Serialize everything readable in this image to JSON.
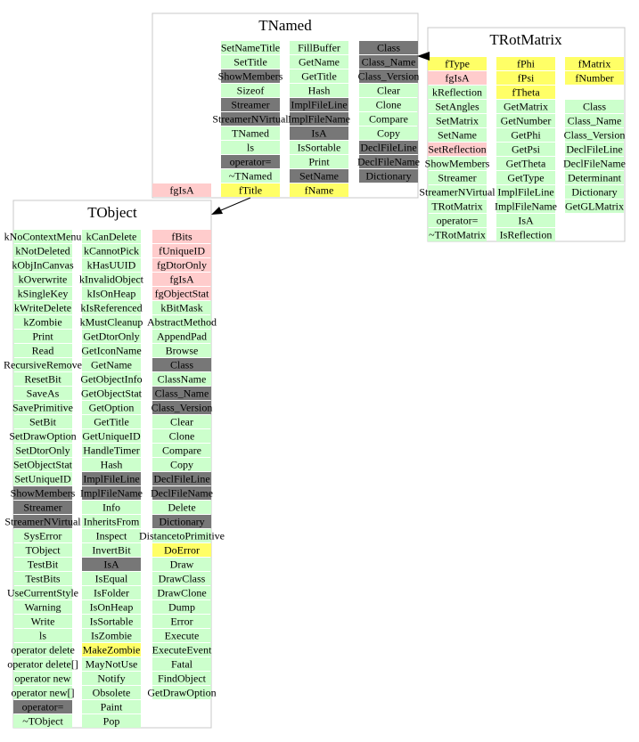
{
  "classes": [
    {
      "name": "TNamed",
      "columns": [
        [
          [
            "fgIsA",
            "#ffcccc"
          ]
        ],
        [
          [
            "SetNameTitle",
            "#ccffcc"
          ],
          [
            "SetTitle",
            "#ccffcc"
          ],
          [
            "ShowMembers",
            "#777777"
          ],
          [
            "Sizeof",
            "#ccffcc"
          ],
          [
            "Streamer",
            "#777777"
          ],
          [
            "StreamerNVirtual",
            "#777777"
          ],
          [
            "TNamed",
            "#ccffcc"
          ],
          [
            "ls",
            "#ccffcc"
          ],
          [
            "operator=",
            "#777777"
          ],
          [
            "~TNamed",
            "#ccffcc"
          ],
          [
            "fTitle",
            "#ffff66"
          ]
        ],
        [
          [
            "FillBuffer",
            "#ccffcc"
          ],
          [
            "GetName",
            "#ccffcc"
          ],
          [
            "GetTitle",
            "#ccffcc"
          ],
          [
            "Hash",
            "#ccffcc"
          ],
          [
            "ImplFileLine",
            "#777777"
          ],
          [
            "ImplFileName",
            "#777777"
          ],
          [
            "IsA",
            "#777777"
          ],
          [
            "IsSortable",
            "#ccffcc"
          ],
          [
            "Print",
            "#ccffcc"
          ],
          [
            "SetName",
            "#777777"
          ],
          [
            "fName",
            "#ffff66"
          ]
        ],
        [
          [
            "Class",
            "#777777"
          ],
          [
            "Class_Name",
            "#777777"
          ],
          [
            "Class_Version",
            "#777777"
          ],
          [
            "Clear",
            "#ccffcc"
          ],
          [
            "Clone",
            "#ccffcc"
          ],
          [
            "Compare",
            "#ccffcc"
          ],
          [
            "Copy",
            "#ccffcc"
          ],
          [
            "DeclFileLine",
            "#777777"
          ],
          [
            "DeclFileName",
            "#777777"
          ],
          [
            "Dictionary",
            "#777777"
          ]
        ]
      ]
    },
    {
      "name": "TRotMatrix",
      "columns": [
        [
          [
            "fType",
            "#ffff66"
          ],
          [
            "fgIsA",
            "#ffcccc"
          ],
          [
            "kReflection",
            "#ccffcc"
          ],
          [
            "SetAngles",
            "#ccffcc"
          ],
          [
            "SetMatrix",
            "#ccffcc"
          ],
          [
            "SetName",
            "#ccffcc"
          ],
          [
            "SetReflection",
            "#ffcccc"
          ],
          [
            "ShowMembers",
            "#ccffcc"
          ],
          [
            "Streamer",
            "#ccffcc"
          ],
          [
            "StreamerNVirtual",
            "#ccffcc"
          ],
          [
            "TRotMatrix",
            "#ccffcc"
          ],
          [
            "operator=",
            "#ccffcc"
          ],
          [
            "~TRotMatrix",
            "#ccffcc"
          ]
        ],
        [
          [
            "fPhi",
            "#ffff66"
          ],
          [
            "fPsi",
            "#ffff66"
          ],
          [
            "fTheta",
            "#ffff66"
          ],
          [
            "GetMatrix",
            "#ccffcc"
          ],
          [
            "GetNumber",
            "#ccffcc"
          ],
          [
            "GetPhi",
            "#ccffcc"
          ],
          [
            "GetPsi",
            "#ccffcc"
          ],
          [
            "GetTheta",
            "#ccffcc"
          ],
          [
            "GetType",
            "#ccffcc"
          ],
          [
            "ImplFileLine",
            "#ccffcc"
          ],
          [
            "ImplFileName",
            "#ccffcc"
          ],
          [
            "IsA",
            "#ccffcc"
          ],
          [
            "IsReflection",
            "#ccffcc"
          ]
        ],
        [
          [
            "fMatrix",
            "#ffff66"
          ],
          [
            "fNumber",
            "#ffff66"
          ]
        ],
        [
          [
            "Class",
            "#ccffcc"
          ],
          [
            "Class_Name",
            "#ccffcc"
          ],
          [
            "Class_Version",
            "#ccffcc"
          ],
          [
            "DeclFileLine",
            "#ccffcc"
          ],
          [
            "DeclFileName",
            "#ccffcc"
          ],
          [
            "Determinant",
            "#ccffcc"
          ],
          [
            "Dictionary",
            "#ccffcc"
          ],
          [
            "GetGLMatrix",
            "#ccffcc"
          ]
        ]
      ]
    },
    {
      "name": "TObject",
      "columns": [
        [
          [
            "kNoContextMenu",
            "#ccffcc"
          ],
          [
            "kNotDeleted",
            "#ccffcc"
          ],
          [
            "kObjInCanvas",
            "#ccffcc"
          ],
          [
            "kOverwrite",
            "#ccffcc"
          ],
          [
            "kSingleKey",
            "#ccffcc"
          ],
          [
            "kWriteDelete",
            "#ccffcc"
          ],
          [
            "kZombie",
            "#ccffcc"
          ],
          [
            "Print",
            "#ccffcc"
          ],
          [
            "Read",
            "#ccffcc"
          ],
          [
            "RecursiveRemove",
            "#ccffcc"
          ],
          [
            "ResetBit",
            "#ccffcc"
          ],
          [
            "SaveAs",
            "#ccffcc"
          ],
          [
            "SavePrimitive",
            "#ccffcc"
          ],
          [
            "SetBit",
            "#ccffcc"
          ],
          [
            "SetDrawOption",
            "#ccffcc"
          ],
          [
            "SetDtorOnly",
            "#ccffcc"
          ],
          [
            "SetObjectStat",
            "#ccffcc"
          ],
          [
            "SetUniqueID",
            "#ccffcc"
          ],
          [
            "ShowMembers",
            "#777777"
          ],
          [
            "Streamer",
            "#777777"
          ],
          [
            "StreamerNVirtual",
            "#777777"
          ],
          [
            "SysError",
            "#ccffcc"
          ],
          [
            "TObject",
            "#ccffcc"
          ],
          [
            "TestBit",
            "#ccffcc"
          ],
          [
            "TestBits",
            "#ccffcc"
          ],
          [
            "UseCurrentStyle",
            "#ccffcc"
          ],
          [
            "Warning",
            "#ccffcc"
          ],
          [
            "Write",
            "#ccffcc"
          ],
          [
            "ls",
            "#ccffcc"
          ],
          [
            "operator delete",
            "#ccffcc"
          ],
          [
            "operator delete[]",
            "#ccffcc"
          ],
          [
            "operator new",
            "#ccffcc"
          ],
          [
            "operator new[]",
            "#ccffcc"
          ],
          [
            "operator=",
            "#777777"
          ],
          [
            "~TObject",
            "#ccffcc"
          ]
        ],
        [
          [
            "kCanDelete",
            "#ccffcc"
          ],
          [
            "kCannotPick",
            "#ccffcc"
          ],
          [
            "kHasUUID",
            "#ccffcc"
          ],
          [
            "kInvalidObject",
            "#ccffcc"
          ],
          [
            "kIsOnHeap",
            "#ccffcc"
          ],
          [
            "kIsReferenced",
            "#ccffcc"
          ],
          [
            "kMustCleanup",
            "#ccffcc"
          ],
          [
            "GetDtorOnly",
            "#ccffcc"
          ],
          [
            "GetIconName",
            "#ccffcc"
          ],
          [
            "GetName",
            "#ccffcc"
          ],
          [
            "GetObjectInfo",
            "#ccffcc"
          ],
          [
            "GetObjectStat",
            "#ccffcc"
          ],
          [
            "GetOption",
            "#ccffcc"
          ],
          [
            "GetTitle",
            "#ccffcc"
          ],
          [
            "GetUniqueID",
            "#ccffcc"
          ],
          [
            "HandleTimer",
            "#ccffcc"
          ],
          [
            "Hash",
            "#ccffcc"
          ],
          [
            "ImplFileLine",
            "#777777"
          ],
          [
            "ImplFileName",
            "#777777"
          ],
          [
            "Info",
            "#ccffcc"
          ],
          [
            "InheritsFrom",
            "#ccffcc"
          ],
          [
            "Inspect",
            "#ccffcc"
          ],
          [
            "InvertBit",
            "#ccffcc"
          ],
          [
            "IsA",
            "#777777"
          ],
          [
            "IsEqual",
            "#ccffcc"
          ],
          [
            "IsFolder",
            "#ccffcc"
          ],
          [
            "IsOnHeap",
            "#ccffcc"
          ],
          [
            "IsSortable",
            "#ccffcc"
          ],
          [
            "IsZombie",
            "#ccffcc"
          ],
          [
            "MakeZombie",
            "#ffff66"
          ],
          [
            "MayNotUse",
            "#ccffcc"
          ],
          [
            "Notify",
            "#ccffcc"
          ],
          [
            "Obsolete",
            "#ccffcc"
          ],
          [
            "Paint",
            "#ccffcc"
          ],
          [
            "Pop",
            "#ccffcc"
          ]
        ],
        [
          [
            "fBits",
            "#ffcccc"
          ],
          [
            "fUniqueID",
            "#ffcccc"
          ],
          [
            "fgDtorOnly",
            "#ffcccc"
          ],
          [
            "fgIsA",
            "#ffcccc"
          ],
          [
            "fgObjectStat",
            "#ffcccc"
          ],
          [
            "kBitMask",
            "#ccffcc"
          ],
          [
            "AbstractMethod",
            "#ccffcc"
          ],
          [
            "AppendPad",
            "#ccffcc"
          ],
          [
            "Browse",
            "#ccffcc"
          ],
          [
            "Class",
            "#777777"
          ],
          [
            "ClassName",
            "#ccffcc"
          ],
          [
            "Class_Name",
            "#777777"
          ],
          [
            "Class_Version",
            "#777777"
          ],
          [
            "Clear",
            "#ccffcc"
          ],
          [
            "Clone",
            "#ccffcc"
          ],
          [
            "Compare",
            "#ccffcc"
          ],
          [
            "Copy",
            "#ccffcc"
          ],
          [
            "DeclFileLine",
            "#777777"
          ],
          [
            "DeclFileName",
            "#777777"
          ],
          [
            "Delete",
            "#ccffcc"
          ],
          [
            "Dictionary",
            "#777777"
          ],
          [
            "DistancetoPrimitive",
            "#ccffcc"
          ],
          [
            "DoError",
            "#ffff66"
          ],
          [
            "Draw",
            "#ccffcc"
          ],
          [
            "DrawClass",
            "#ccffcc"
          ],
          [
            "DrawClone",
            "#ccffcc"
          ],
          [
            "Dump",
            "#ccffcc"
          ],
          [
            "Error",
            "#ccffcc"
          ],
          [
            "Execute",
            "#ccffcc"
          ],
          [
            "ExecuteEvent",
            "#ccffcc"
          ],
          [
            "Fatal",
            "#ccffcc"
          ],
          [
            "FindObject",
            "#ccffcc"
          ],
          [
            "GetDrawOption",
            "#ccffcc"
          ]
        ]
      ]
    }
  ]
}
